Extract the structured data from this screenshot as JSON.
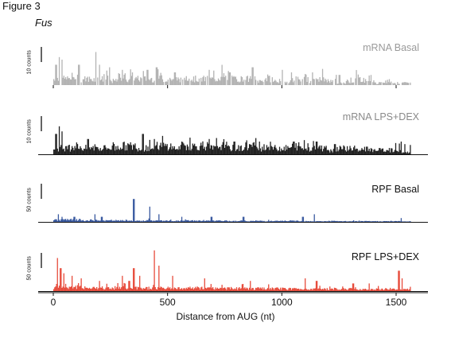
{
  "figure_label": "Figure 3",
  "gene": "Fus",
  "chart_data": {
    "type": "bar",
    "xlabel": "Distance from AUG (nt)",
    "xlim": [
      -50,
      1640
    ],
    "xticks": [
      0,
      500,
      1000,
      1500
    ],
    "series": [
      {
        "name": "mRNA Basal",
        "scale_label": "10 counts",
        "color": "#b3b3b3",
        "profile": [
          3,
          3,
          4,
          3,
          3,
          3,
          2,
          4,
          3,
          3,
          3,
          4,
          3,
          3,
          4,
          3,
          3,
          3,
          4,
          3,
          3,
          3,
          2,
          3,
          2,
          2,
          3,
          3,
          2,
          3,
          2,
          1,
          2,
          3,
          2,
          1,
          2,
          1,
          1,
          1
        ],
        "peaks": [
          [
            10,
            8
          ],
          [
            25,
            11
          ],
          [
            35,
            10
          ],
          [
            110,
            8
          ],
          [
            185,
            13
          ],
          [
            200,
            8
          ],
          [
            245,
            7
          ],
          [
            300,
            6
          ],
          [
            345,
            5
          ],
          [
            410,
            6
          ],
          [
            450,
            7
          ],
          [
            530,
            5
          ],
          [
            680,
            6
          ],
          [
            770,
            5
          ],
          [
            870,
            7
          ],
          [
            1000,
            6
          ],
          [
            1130,
            5
          ],
          [
            1250,
            4
          ],
          [
            1390,
            4
          ],
          [
            1520,
            3
          ]
        ]
      },
      {
        "name": "mRNA LPS+DEX",
        "scale_label": "10 counts",
        "color": "#222222",
        "profile": [
          3,
          3,
          4,
          3,
          3,
          3,
          3,
          4,
          4,
          3,
          3,
          4,
          4,
          3,
          4,
          4,
          4,
          3,
          4,
          3,
          3,
          4,
          3,
          4,
          3,
          3,
          4,
          3,
          3,
          3,
          2,
          3,
          3,
          2,
          2,
          2,
          2,
          2,
          1,
          3
        ],
        "peaks": [
          [
            10,
            8
          ],
          [
            25,
            11
          ],
          [
            35,
            9
          ],
          [
            150,
            6
          ],
          [
            390,
            8
          ],
          [
            440,
            6
          ],
          [
            560,
            5
          ],
          [
            680,
            6
          ],
          [
            790,
            5
          ],
          [
            900,
            5
          ],
          [
            1050,
            5
          ],
          [
            1150,
            5
          ],
          [
            1230,
            4
          ],
          [
            1370,
            3
          ],
          [
            1520,
            5
          ],
          [
            1535,
            4
          ]
        ]
      },
      {
        "name": "RPF Basal",
        "scale_label": "50 counts",
        "color": "#3a5aa0",
        "profile": [
          1,
          1,
          1,
          0.5,
          0.8,
          0.6,
          0.7,
          0.6,
          0.6,
          0.5,
          0.6,
          0.6,
          0.5,
          0.5,
          0.6,
          0.6,
          0.5,
          0.5,
          0.5,
          0.4,
          0.5,
          0.4,
          0.5,
          0.4,
          0.4,
          0.5,
          0.5,
          0.4,
          0.3,
          0.3,
          0.4,
          0.3,
          0.3,
          0.3,
          0.3,
          0.3,
          0.3,
          0.3,
          0.2,
          0.3
        ],
        "peaks": [
          [
            20,
            3
          ],
          [
            35,
            2
          ],
          [
            90,
            2
          ],
          [
            180,
            3
          ],
          [
            210,
            2
          ],
          [
            350,
            9
          ],
          [
            420,
            6
          ],
          [
            460,
            3
          ],
          [
            560,
            2
          ],
          [
            690,
            2
          ],
          [
            830,
            2
          ],
          [
            1090,
            2
          ],
          [
            1140,
            3
          ],
          [
            1520,
            1.5
          ]
        ]
      },
      {
        "name": "RPF LPS+DEX",
        "scale_label": "50 counts",
        "color": "#e74c3c",
        "profile": [
          2,
          2,
          2,
          1.5,
          1.5,
          1.5,
          1.5,
          1.6,
          1.5,
          1.5,
          1.5,
          1.5,
          1.4,
          1.4,
          1.4,
          1.5,
          1.4,
          1.4,
          1.3,
          1.3,
          1.3,
          1.2,
          1.2,
          1.2,
          1.2,
          1.1,
          1.1,
          1.0,
          1.0,
          1.0,
          1.0,
          1.0,
          1.0,
          0.9,
          0.9,
          0.9,
          0.9,
          0.8,
          0.8,
          1.5
        ],
        "peaks": [
          [
            15,
            13
          ],
          [
            30,
            9
          ],
          [
            45,
            7
          ],
          [
            80,
            6
          ],
          [
            120,
            5
          ],
          [
            200,
            4
          ],
          [
            300,
            6
          ],
          [
            330,
            4
          ],
          [
            350,
            9
          ],
          [
            375,
            6
          ],
          [
            440,
            16
          ],
          [
            460,
            10
          ],
          [
            520,
            6
          ],
          [
            660,
            5
          ],
          [
            860,
            4
          ],
          [
            1100,
            5
          ],
          [
            1150,
            4
          ],
          [
            1310,
            3
          ],
          [
            1380,
            3
          ],
          [
            1510,
            8
          ],
          [
            1525,
            5
          ]
        ]
      }
    ]
  }
}
